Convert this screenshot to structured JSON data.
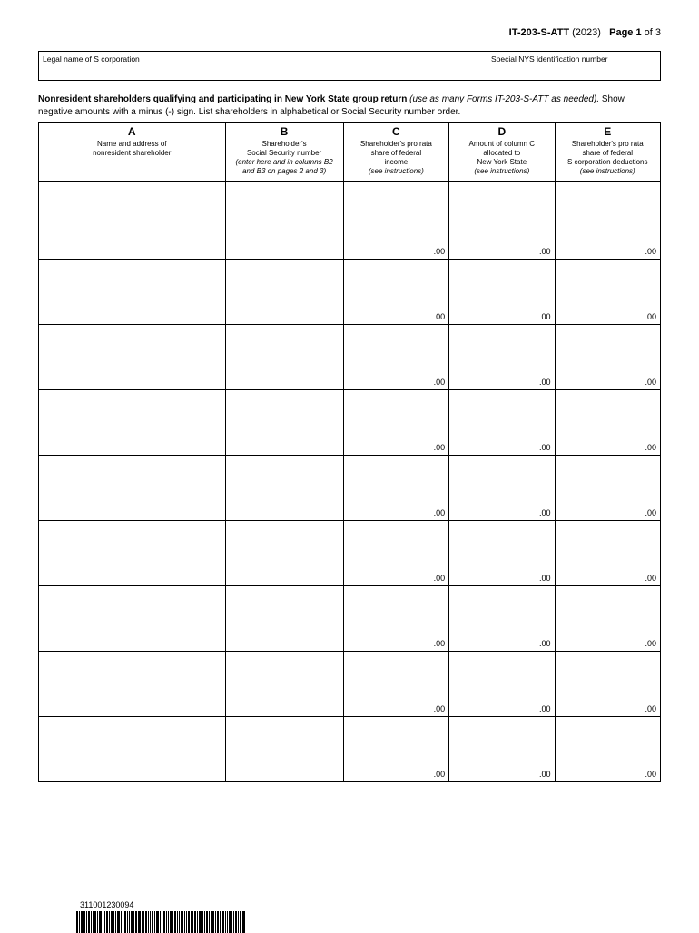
{
  "header": {
    "form_id": "IT-203-S-ATT",
    "year": "(2023)",
    "page_label": "Page 1",
    "page_of": "of 3"
  },
  "top_box": {
    "left_label": "Legal name of S corporation",
    "right_label": "Special NYS identification number"
  },
  "section": {
    "bold": "Nonresident shareholders qualifying and participating in New York State group return ",
    "ital": "(use as many Forms IT-203-S-ATT as needed).",
    "plain": " Show negative amounts with a minus (-) sign. List shareholders in alphabetical or Social Security number order."
  },
  "columns": {
    "a": {
      "letter": "A",
      "l1": "Name and address of",
      "l2": "nonresident shareholder"
    },
    "b": {
      "letter": "B",
      "l1": "Shareholder's",
      "l2": "Social Security number",
      "i1": "(enter here and in columns B2",
      "i2": "and B3 on pages 2 and 3)"
    },
    "c": {
      "letter": "C",
      "l1": "Shareholder's pro rata",
      "l2": "share of federal",
      "l3": "income",
      "i1": "(see instructions)"
    },
    "d": {
      "letter": "D",
      "l1": "Amount of column C",
      "l2": "allocated to",
      "l3": "New York State",
      "i1": "(see instructions)"
    },
    "e": {
      "letter": "E",
      "l1": "Shareholder's pro rata",
      "l2": "share of federal",
      "l3": "S corporation deductions",
      "i1": "(see instructions)"
    }
  },
  "col_widths": {
    "a": "30%",
    "b": "19%",
    "c": "17%",
    "d": "17%",
    "e": "17%"
  },
  "cell_suffix": ".00",
  "row_count": 9,
  "barcode": {
    "number": "311001230094",
    "bars": [
      2,
      1,
      3,
      1,
      1,
      2,
      1,
      1,
      2,
      1,
      3,
      1,
      1,
      2,
      1,
      2,
      1,
      1,
      3,
      1,
      1,
      2,
      1,
      1,
      2,
      1,
      2,
      3,
      1,
      1,
      2,
      1,
      1,
      2,
      1,
      3,
      1,
      1,
      2,
      1,
      1,
      2,
      1,
      2,
      1,
      1,
      3,
      1,
      1,
      2,
      1,
      1,
      2,
      1,
      3,
      1,
      1,
      2,
      1,
      1,
      2,
      1,
      2,
      1,
      3,
      1,
      1,
      2,
      1,
      1,
      2,
      1,
      2,
      3
    ]
  }
}
